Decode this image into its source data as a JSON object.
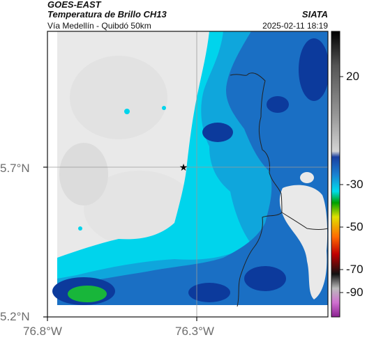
{
  "header": {
    "satellite": "GOES-EAST",
    "product": "Temperatura de Brillo CH13",
    "region": "Vía Medellín - Quibdó 50km",
    "agency": "SIATA",
    "timestamp": "2025-02-11 18:19"
  },
  "axes": {
    "lat_labels": [
      "5.7°N",
      "5.2°N"
    ],
    "lon_labels": [
      "76.8°W",
      "76.3°W"
    ]
  },
  "colorbar": {
    "labels": [
      "20",
      "-30",
      "-50",
      "-70",
      "-90"
    ]
  },
  "marker": {
    "symbol": "★"
  },
  "colors": {
    "clear": "#e9e9e9",
    "cyan": "#00d4ec",
    "light_blue": "#0fa6dc",
    "mid_blue": "#1a6fc4",
    "deep_blue": "#0c3a9c",
    "green": "#18b63a",
    "border": "#222222"
  }
}
